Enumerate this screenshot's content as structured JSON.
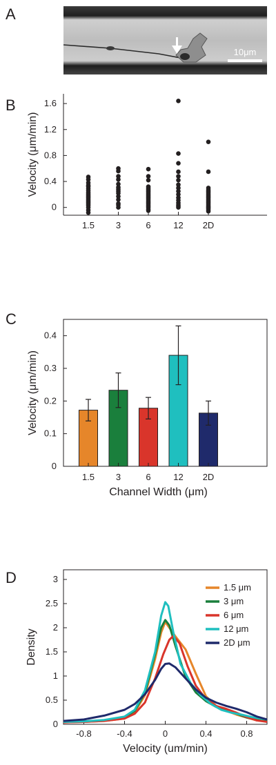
{
  "panels": {
    "A": {
      "letter": "A",
      "scale_bar": "10μm"
    },
    "B": {
      "letter": "B"
    },
    "C": {
      "letter": "C"
    },
    "D": {
      "letter": "D"
    }
  },
  "chart_data": [
    {
      "panel": "B",
      "type": "scatter",
      "categories": [
        "1.5",
        "3",
        "6",
        "12",
        "2D"
      ],
      "ylabel": "Velocity (μm/min)",
      "xlabel": "",
      "ylim": [
        -0.12,
        1.75
      ],
      "yticks": [
        "0",
        "0.4",
        "0.8",
        "1.2",
        "1.6"
      ],
      "yticks_values": [
        0,
        0.4,
        0.8,
        1.2,
        1.6
      ],
      "points": [
        [
          0.47,
          0.43,
          0.38,
          0.34,
          0.32,
          0.29,
          0.26,
          0.23,
          0.21,
          0.19,
          0.17,
          0.15,
          0.13,
          0.11,
          0.09,
          0.07,
          0.05,
          0.03,
          0.0,
          -0.04,
          -0.08
        ],
        [
          0.6,
          0.56,
          0.48,
          0.43,
          0.36,
          0.31,
          0.28,
          0.25,
          0.22,
          0.17,
          0.12,
          0.06,
          0.04,
          0.0
        ],
        [
          0.59,
          0.48,
          0.42,
          0.32,
          0.3,
          0.28,
          0.26,
          0.24,
          0.22,
          0.2,
          0.18,
          0.16,
          0.14,
          0.12,
          0.1,
          0.08,
          0.06,
          0.04,
          0.02,
          0.0,
          -0.03,
          -0.05
        ],
        [
          1.64,
          0.83,
          0.68,
          0.55,
          0.48,
          0.42,
          0.35,
          0.3,
          0.25,
          0.2,
          0.15,
          0.11,
          0.07,
          0.04,
          0.02,
          0.0
        ],
        [
          1.01,
          0.55,
          0.3,
          0.27,
          0.25,
          0.23,
          0.21,
          0.19,
          0.17,
          0.15,
          0.13,
          0.11,
          0.09,
          0.07,
          0.05,
          0.03,
          0.01,
          0.0,
          -0.02,
          -0.04,
          -0.06
        ]
      ]
    },
    {
      "panel": "C",
      "type": "bar",
      "categories": [
        "1.5",
        "3",
        "6",
        "12",
        "2D"
      ],
      "values": [
        0.172,
        0.233,
        0.178,
        0.34,
        0.163
      ],
      "errors": [
        0.033,
        0.053,
        0.033,
        0.09,
        0.037
      ],
      "colors": [
        "#e6862a",
        "#1a7f3c",
        "#d9352b",
        "#1fbfbf",
        "#1f2a6b"
      ],
      "xlabel": "Channel Width (μm)",
      "ylabel": "Velocity (μm/min)",
      "ylim": [
        0,
        0.45
      ],
      "yticks": [
        "0",
        "0.1",
        "0.2",
        "0.3",
        "0.4"
      ],
      "yticks_values": [
        0,
        0.1,
        0.2,
        0.3,
        0.4
      ]
    },
    {
      "panel": "D",
      "type": "line",
      "xlabel": "Velocity (um/min)",
      "ylabel": "Density",
      "xlim": [
        -1,
        1
      ],
      "ylim": [
        0,
        3.2
      ],
      "xticks": [
        "-0.8",
        "-0.4",
        "0",
        "0.4",
        "0.8"
      ],
      "xticks_values": [
        -0.8,
        -0.4,
        0,
        0.4,
        0.8
      ],
      "yticks": [
        "0",
        "0.5",
        "1",
        "1.5",
        "2",
        "2.5",
        "3"
      ],
      "yticks_values": [
        0,
        0.5,
        1,
        1.5,
        2,
        2.5,
        3
      ],
      "legend_position": "top-right",
      "series": [
        {
          "name": "1.5 μm",
          "color": "#e6862a",
          "points": [
            [
              -1,
              0.04
            ],
            [
              -0.8,
              0.05
            ],
            [
              -0.6,
              0.07
            ],
            [
              -0.4,
              0.12
            ],
            [
              -0.3,
              0.25
            ],
            [
              -0.2,
              0.6
            ],
            [
              -0.1,
              1.35
            ],
            [
              -0.04,
              1.9
            ],
            [
              0,
              2.12
            ],
            [
              0.04,
              2.0
            ],
            [
              0.1,
              1.82
            ],
            [
              0.2,
              1.55
            ],
            [
              0.3,
              1.05
            ],
            [
              0.4,
              0.58
            ],
            [
              0.5,
              0.38
            ],
            [
              0.6,
              0.28
            ],
            [
              0.7,
              0.2
            ],
            [
              0.8,
              0.14
            ],
            [
              0.9,
              0.08
            ],
            [
              1,
              0.06
            ]
          ]
        },
        {
          "name": "3 μm",
          "color": "#1a7f3c",
          "points": [
            [
              -1,
              0.05
            ],
            [
              -0.8,
              0.06
            ],
            [
              -0.6,
              0.08
            ],
            [
              -0.4,
              0.14
            ],
            [
              -0.3,
              0.28
            ],
            [
              -0.2,
              0.65
            ],
            [
              -0.1,
              1.45
            ],
            [
              -0.04,
              2.0
            ],
            [
              0,
              2.16
            ],
            [
              0.04,
              2.05
            ],
            [
              0.1,
              1.62
            ],
            [
              0.2,
              0.98
            ],
            [
              0.3,
              0.66
            ],
            [
              0.4,
              0.48
            ],
            [
              0.5,
              0.36
            ],
            [
              0.6,
              0.3
            ],
            [
              0.7,
              0.22
            ],
            [
              0.8,
              0.14
            ],
            [
              0.9,
              0.09
            ],
            [
              1,
              0.06
            ]
          ]
        },
        {
          "name": "6 μm",
          "color": "#d9352b",
          "points": [
            [
              -1,
              0.04
            ],
            [
              -0.8,
              0.05
            ],
            [
              -0.6,
              0.07
            ],
            [
              -0.4,
              0.12
            ],
            [
              -0.3,
              0.22
            ],
            [
              -0.2,
              0.45
            ],
            [
              -0.1,
              0.95
            ],
            [
              -0.02,
              1.45
            ],
            [
              0.04,
              1.75
            ],
            [
              0.08,
              1.83
            ],
            [
              0.14,
              1.68
            ],
            [
              0.22,
              1.2
            ],
            [
              0.3,
              0.8
            ],
            [
              0.4,
              0.52
            ],
            [
              0.5,
              0.38
            ],
            [
              0.6,
              0.32
            ],
            [
              0.7,
              0.24
            ],
            [
              0.8,
              0.15
            ],
            [
              0.9,
              0.08
            ],
            [
              1,
              0.05
            ]
          ]
        },
        {
          "name": "12 μm",
          "color": "#1fbfbf",
          "points": [
            [
              -1,
              0.05
            ],
            [
              -0.8,
              0.06
            ],
            [
              -0.6,
              0.09
            ],
            [
              -0.4,
              0.16
            ],
            [
              -0.3,
              0.3
            ],
            [
              -0.2,
              0.7
            ],
            [
              -0.1,
              1.5
            ],
            [
              -0.04,
              2.25
            ],
            [
              0,
              2.53
            ],
            [
              0.03,
              2.45
            ],
            [
              0.08,
              1.9
            ],
            [
              0.15,
              1.25
            ],
            [
              0.25,
              0.85
            ],
            [
              0.35,
              0.6
            ],
            [
              0.45,
              0.42
            ],
            [
              0.55,
              0.3
            ],
            [
              0.65,
              0.24
            ],
            [
              0.75,
              0.2
            ],
            [
              0.85,
              0.15
            ],
            [
              1,
              0.1
            ]
          ]
        },
        {
          "name": "2D μm",
          "color": "#1f2a6b",
          "points": [
            [
              -1,
              0.07
            ],
            [
              -0.8,
              0.1
            ],
            [
              -0.6,
              0.18
            ],
            [
              -0.4,
              0.3
            ],
            [
              -0.3,
              0.42
            ],
            [
              -0.2,
              0.62
            ],
            [
              -0.1,
              0.92
            ],
            [
              -0.04,
              1.15
            ],
            [
              0,
              1.25
            ],
            [
              0.04,
              1.26
            ],
            [
              0.1,
              1.18
            ],
            [
              0.2,
              0.95
            ],
            [
              0.3,
              0.72
            ],
            [
              0.4,
              0.55
            ],
            [
              0.5,
              0.45
            ],
            [
              0.6,
              0.38
            ],
            [
              0.7,
              0.32
            ],
            [
              0.8,
              0.25
            ],
            [
              0.9,
              0.16
            ],
            [
              1,
              0.1
            ]
          ]
        }
      ]
    }
  ]
}
